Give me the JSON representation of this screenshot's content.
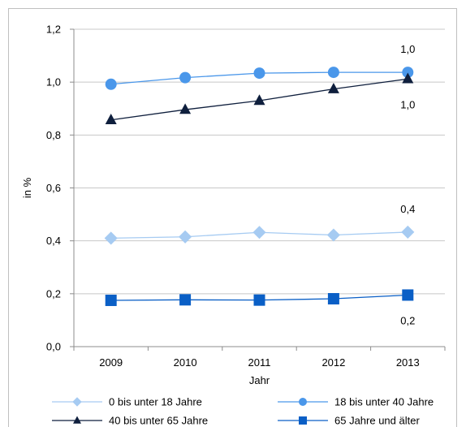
{
  "chart_data": {
    "type": "line",
    "title": "",
    "xlabel": "Jahr",
    "ylabel": "in %",
    "categories": [
      "2009",
      "2010",
      "2011",
      "2012",
      "2013"
    ],
    "ylim": [
      0,
      1.2
    ],
    "yticks": [
      "0,0",
      "0,2",
      "0,4",
      "0,6",
      "0,8",
      "1,0",
      "1,2"
    ],
    "ytick_values": [
      0,
      0.2,
      0.4,
      0.6,
      0.8,
      1.0,
      1.2
    ],
    "grid": "horizontal",
    "legend_placement": "bottom",
    "series": [
      {
        "name": "0 bis unter 18 Jahre",
        "values": [
          0.41,
          0.415,
          0.432,
          0.422,
          0.433
        ],
        "marker": "diamond",
        "color": "#a6cbf2",
        "end_label": "0,4",
        "end_label_position": "above"
      },
      {
        "name": "18 bis unter 40 Jahre",
        "values": [
          0.992,
          1.017,
          1.034,
          1.037,
          1.037
        ],
        "marker": "circle",
        "color": "#4a97ea",
        "end_label": "1,0",
        "end_label_position": "above"
      },
      {
        "name": "40 bis unter 65 Jahre",
        "values": [
          0.857,
          0.896,
          0.93,
          0.974,
          1.012
        ],
        "marker": "triangle",
        "color": "#0f1f3d",
        "end_label": "1,0",
        "end_label_position": "below"
      },
      {
        "name": "65 Jahre und älter",
        "values": [
          0.175,
          0.177,
          0.176,
          0.181,
          0.195
        ],
        "marker": "square",
        "color": "#0a5fc6",
        "end_label": "0,2",
        "end_label_position": "below"
      }
    ]
  }
}
